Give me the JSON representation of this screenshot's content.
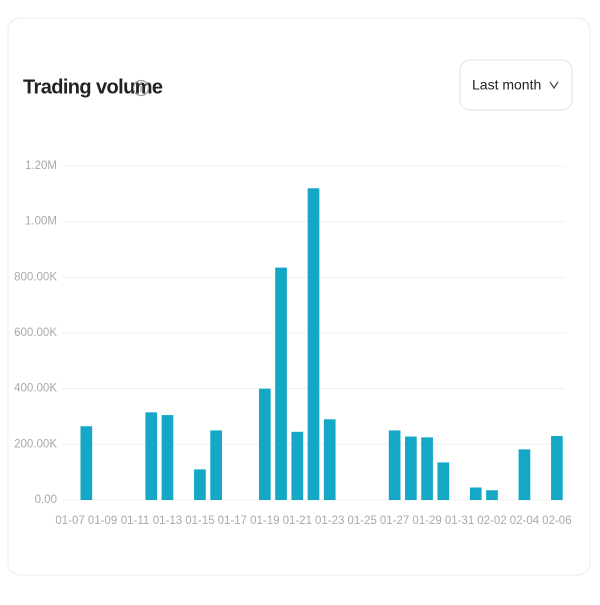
{
  "chart_data": {
    "type": "bar",
    "title": "Trading volume",
    "categories": [
      "01-07",
      null,
      "01-09",
      null,
      "01-11",
      null,
      "01-13",
      null,
      "01-15",
      null,
      "01-17",
      null,
      "01-19",
      null,
      "01-21",
      null,
      "01-23",
      null,
      "01-25",
      null,
      "01-27",
      null,
      "01-29",
      null,
      "01-31",
      null,
      "02-02",
      null,
      "02-04",
      null,
      "02-06"
    ],
    "values": [
      0,
      265000,
      0,
      0,
      0,
      315000,
      305000,
      0,
      110000,
      250000,
      0,
      0,
      400000,
      835000,
      245000,
      1120000,
      290000,
      0,
      0,
      0,
      250000,
      228000,
      225000,
      135000,
      0,
      45000,
      35000,
      0,
      182000,
      0,
      230000
    ],
    "color": "#14a8c6",
    "ylim": [
      0,
      1200000
    ],
    "yticks": [
      {
        "value": 0,
        "label": "0.00"
      },
      {
        "value": 200000,
        "label": "200.00K"
      },
      {
        "value": 400000,
        "label": "400.00K"
      },
      {
        "value": 600000,
        "label": "600.00K"
      },
      {
        "value": 800000,
        "label": "800.00K"
      },
      {
        "value": 1000000,
        "label": "1.00M"
      },
      {
        "value": 1200000,
        "label": "1.20M"
      }
    ],
    "grid": true
  },
  "controls": {
    "range_selector": "Last month"
  }
}
